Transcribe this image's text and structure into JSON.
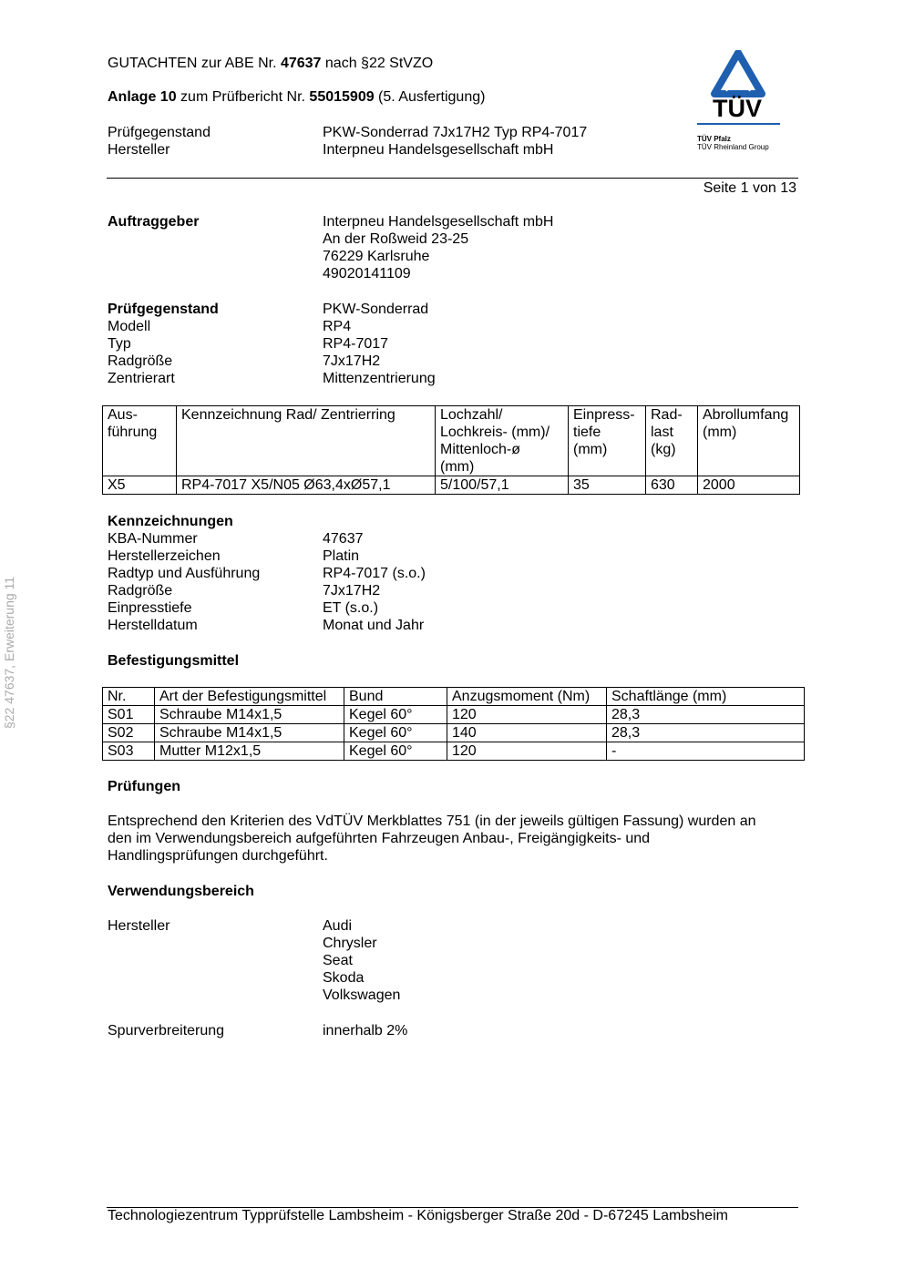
{
  "header": {
    "line1_pre": "GUTACHTEN zur ABE Nr. ",
    "line1_num": "47637",
    "line1_post": " nach §22 StVZO",
    "line2_bold": "Anlage 10",
    "line2_mid": " zum Prüfbericht Nr. ",
    "line2_num": "55015909",
    "line2_post": " (5. Ausfertigung)",
    "rows": [
      {
        "label": "Prüfgegenstand",
        "value": "PKW-Sonderrad 7Jx17H2 Typ RP4-7017"
      },
      {
        "label": "Hersteller",
        "value": "Interpneu Handelsgesellschaft mbH"
      }
    ],
    "page": "Seite 1 von 13"
  },
  "logo": {
    "text": "TÜV",
    "sub1": "TÜV Pfalz",
    "sub2": "TÜV Rheinland Group",
    "color": "#1f5fb0"
  },
  "side_text": "§22  47637, Erweiterung 11",
  "auftraggeber": {
    "label": "Auftraggeber",
    "lines": [
      "Interpneu Handelsgesellschaft mbH",
      "An der Roßweid 23-25",
      "76229 Karlsruhe",
      "49020141109"
    ]
  },
  "pruefgegenstand": {
    "rows": [
      {
        "label": "Prüfgegenstand",
        "value": "PKW-Sonderrad"
      },
      {
        "label": "Modell",
        "value": "RP4"
      },
      {
        "label": "Typ",
        "value": "RP4-7017"
      },
      {
        "label": "Radgröße",
        "value": "7Jx17H2"
      },
      {
        "label": "Zentrierart",
        "value": "Mittenzentrierung"
      }
    ]
  },
  "wheel_table": {
    "headers": [
      "Aus-\nführung",
      "Kennzeichnung Rad/ Zentrierring",
      "Lochzahl/\nLochkreis- (mm)/\nMittenloch-ø\n(mm)",
      "Einpress-\ntiefe\n(mm)",
      "Rad-\nlast\n(kg)",
      "Abrollumfang\n(mm)"
    ],
    "rows": [
      [
        "X5",
        "RP4-7017 X5/N05 Ø63,4xØ57,1",
        "5/100/57,1",
        "35",
        "630",
        "2000"
      ]
    ]
  },
  "kennzeichnungen": {
    "title": "Kennzeichnungen",
    "rows": [
      {
        "label": "KBA-Nummer",
        "value": "47637"
      },
      {
        "label": "Herstellerzeichen",
        "value": "Platin"
      },
      {
        "label": "Radtyp und Ausführung",
        "value": "RP4-7017 (s.o.)"
      },
      {
        "label": "Radgröße",
        "value": "7Jx17H2"
      },
      {
        "label": "Einpresstiefe",
        "value": "ET (s.o.)"
      },
      {
        "label": "Herstelldatum",
        "value": "Monat und Jahr"
      }
    ]
  },
  "befestigung": {
    "title": "Befestigungsmittel",
    "headers": [
      "Nr.",
      "Art der Befestigungsmittel",
      "Bund",
      "Anzugsmoment (Nm)",
      "Schaftlänge (mm)"
    ],
    "rows": [
      [
        "S01",
        "Schraube M14x1,5",
        "Kegel 60°",
        "120",
        "28,3"
      ],
      [
        "S02",
        "Schraube M14x1,5",
        "Kegel 60°",
        "140",
        "28,3"
      ],
      [
        "S03",
        "Mutter M12x1,5",
        "Kegel 60°",
        "120",
        "-"
      ]
    ]
  },
  "pruefungen": {
    "title": "Prüfungen",
    "lines": [
      "Entsprechend den Kriterien des VdTÜV Merkblattes 751 (in der jeweils gültigen Fassung) wurden an",
      "den im Verwendungsbereich aufgeführten Fahrzeugen Anbau-, Freigängigkeits- und",
      "Handlingsprüfungen durchgeführt."
    ]
  },
  "verwendung": {
    "title": "Verwendungsbereich",
    "hersteller_label": "Hersteller",
    "hersteller": [
      "Audi",
      "Chrysler",
      "Seat",
      "Skoda",
      "Volkswagen"
    ],
    "spur_label": "Spurverbreiterung",
    "spur_value": "innerhalb 2%"
  },
  "footer": "Technologiezentrum Typprüfstelle Lambsheim - Königsberger Straße 20d - D-67245 Lambsheim"
}
